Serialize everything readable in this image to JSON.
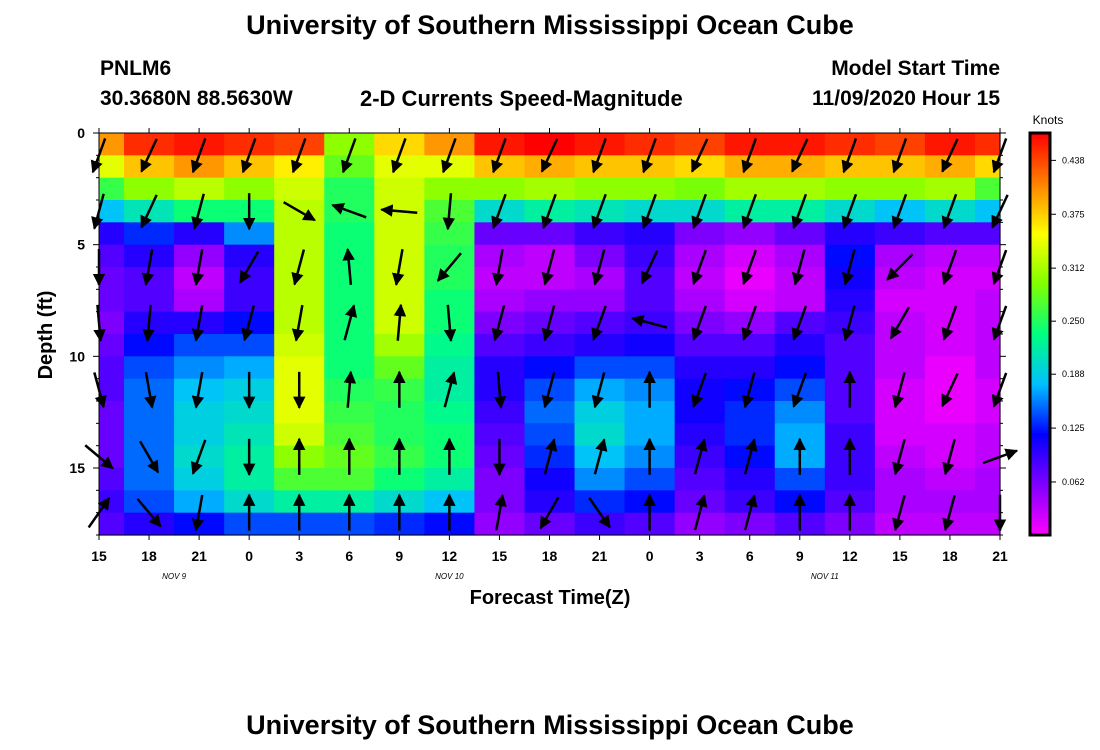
{
  "header": {
    "title": "University of Southern Mississippi Ocean Cube",
    "station": "PNLM6",
    "coords": "30.3680N 88.5630W",
    "subtitle": "2-D Currents Speed-Magnitude",
    "model_label": "Model Start Time",
    "model_time": "11/09/2020 Hour 15"
  },
  "footer": {
    "title": "University of Southern Mississippi Ocean Cube"
  },
  "chart_data": {
    "type": "heatmap",
    "title": "2-D Currents Speed-Magnitude",
    "xlabel": "Forecast Time(Z)",
    "ylabel": "Depth (ft)",
    "x_ticks": [
      "15",
      "18",
      "21",
      "0",
      "3",
      "6",
      "9",
      "12",
      "15",
      "18",
      "21",
      "0",
      "3",
      "6",
      "9",
      "12",
      "15",
      "18",
      "21"
    ],
    "date_labels": [
      "NOV 9",
      "NOV 10",
      "NOV 11"
    ],
    "y_ticks": [
      0,
      5,
      10,
      15
    ],
    "ylim": [
      0,
      18
    ],
    "colorbar": {
      "label": "Knots",
      "ticks": [
        "0.438",
        "0.375",
        "0.312",
        "0.250",
        "0.188",
        "0.125",
        "0.062"
      ],
      "range": [
        0,
        0.47
      ],
      "colors": [
        "#ff00ff",
        "#8000ff",
        "#0000ff",
        "#00c0ff",
        "#00ff80",
        "#80ff00",
        "#ffff00",
        "#ff8000",
        "#ff0000"
      ]
    },
    "columns": 19,
    "depths_ft": [
      0.5,
      1.5,
      2.5,
      3.5,
      4.5,
      5.5,
      6.5,
      7.5,
      8.5,
      9.5,
      10.5,
      11.5,
      12.5,
      13.5,
      14.5,
      15.5,
      16.5,
      17.5
    ],
    "speed_knots": [
      [
        0.4,
        0.45,
        0.46,
        0.45,
        0.44,
        0.3,
        0.37,
        0.4,
        0.46,
        0.47,
        0.46,
        0.45,
        0.44,
        0.46,
        0.46,
        0.45,
        0.44,
        0.46,
        0.45
      ],
      [
        0.34,
        0.38,
        0.4,
        0.38,
        0.36,
        0.28,
        0.34,
        0.34,
        0.38,
        0.39,
        0.38,
        0.38,
        0.37,
        0.39,
        0.39,
        0.38,
        0.38,
        0.39,
        0.37
      ],
      [
        0.26,
        0.3,
        0.32,
        0.3,
        0.33,
        0.25,
        0.33,
        0.3,
        0.3,
        0.31,
        0.3,
        0.3,
        0.29,
        0.31,
        0.31,
        0.3,
        0.3,
        0.31,
        0.27
      ],
      [
        0.18,
        0.21,
        0.24,
        0.24,
        0.32,
        0.25,
        0.33,
        0.27,
        0.2,
        0.22,
        0.21,
        0.2,
        0.2,
        0.22,
        0.22,
        0.2,
        0.18,
        0.2,
        0.18
      ],
      [
        0.1,
        0.13,
        0.1,
        0.16,
        0.32,
        0.24,
        0.33,
        0.26,
        0.07,
        0.07,
        0.09,
        0.1,
        0.06,
        0.05,
        0.07,
        0.1,
        0.09,
        0.08,
        0.08
      ],
      [
        0.08,
        0.1,
        0.05,
        0.1,
        0.32,
        0.24,
        0.33,
        0.25,
        0.04,
        0.03,
        0.06,
        0.09,
        0.04,
        0.02,
        0.04,
        0.12,
        0.04,
        0.03,
        0.03
      ],
      [
        0.07,
        0.08,
        0.03,
        0.09,
        0.32,
        0.24,
        0.33,
        0.25,
        0.03,
        0.03,
        0.04,
        0.08,
        0.03,
        0.01,
        0.03,
        0.11,
        0.03,
        0.02,
        0.02
      ],
      [
        0.07,
        0.08,
        0.04,
        0.09,
        0.32,
        0.24,
        0.33,
        0.24,
        0.04,
        0.05,
        0.05,
        0.08,
        0.04,
        0.02,
        0.03,
        0.1,
        0.02,
        0.02,
        0.03
      ],
      [
        0.06,
        0.1,
        0.1,
        0.12,
        0.32,
        0.24,
        0.33,
        0.24,
        0.06,
        0.07,
        0.08,
        0.09,
        0.06,
        0.05,
        0.08,
        0.09,
        0.03,
        0.02,
        0.03
      ],
      [
        0.07,
        0.12,
        0.14,
        0.14,
        0.33,
        0.24,
        0.31,
        0.23,
        0.08,
        0.09,
        0.1,
        0.11,
        0.08,
        0.08,
        0.1,
        0.08,
        0.03,
        0.02,
        0.03
      ],
      [
        0.08,
        0.14,
        0.16,
        0.17,
        0.34,
        0.24,
        0.28,
        0.22,
        0.1,
        0.12,
        0.14,
        0.14,
        0.1,
        0.1,
        0.12,
        0.08,
        0.03,
        0.01,
        0.03
      ],
      [
        0.08,
        0.15,
        0.18,
        0.19,
        0.34,
        0.25,
        0.26,
        0.22,
        0.1,
        0.14,
        0.17,
        0.16,
        0.11,
        0.12,
        0.14,
        0.08,
        0.02,
        0.01,
        0.02
      ],
      [
        0.07,
        0.15,
        0.19,
        0.2,
        0.34,
        0.26,
        0.25,
        0.23,
        0.09,
        0.15,
        0.19,
        0.17,
        0.11,
        0.13,
        0.16,
        0.08,
        0.02,
        0.01,
        0.02
      ],
      [
        0.07,
        0.15,
        0.19,
        0.21,
        0.33,
        0.27,
        0.25,
        0.24,
        0.08,
        0.14,
        0.2,
        0.17,
        0.1,
        0.13,
        0.17,
        0.09,
        0.02,
        0.02,
        0.03
      ],
      [
        0.07,
        0.15,
        0.2,
        0.22,
        0.3,
        0.28,
        0.26,
        0.24,
        0.07,
        0.13,
        0.18,
        0.16,
        0.09,
        0.12,
        0.17,
        0.09,
        0.03,
        0.02,
        0.03
      ],
      [
        0.08,
        0.15,
        0.19,
        0.22,
        0.27,
        0.27,
        0.24,
        0.22,
        0.06,
        0.11,
        0.16,
        0.14,
        0.08,
        0.1,
        0.14,
        0.09,
        0.04,
        0.03,
        0.04
      ],
      [
        0.09,
        0.14,
        0.17,
        0.2,
        0.22,
        0.22,
        0.2,
        0.18,
        0.06,
        0.1,
        0.13,
        0.12,
        0.07,
        0.09,
        0.12,
        0.08,
        0.04,
        0.04,
        0.04
      ],
      [
        0.08,
        0.1,
        0.12,
        0.14,
        0.14,
        0.14,
        0.13,
        0.12,
        0.05,
        0.07,
        0.09,
        0.08,
        0.05,
        0.06,
        0.08,
        0.06,
        0.03,
        0.03,
        0.03
      ]
    ],
    "vector_note": "current direction arrows",
    "vector_angle_deg": [
      [
        200,
        205,
        200,
        200,
        200,
        200,
        200,
        200,
        200,
        205,
        200,
        200,
        205,
        200,
        205,
        200,
        200,
        205,
        200
      ],
      [
        195,
        205,
        195,
        180,
        120,
        290,
        275,
        185,
        200,
        200,
        200,
        200,
        200,
        200,
        200,
        200,
        200,
        200,
        205
      ],
      [
        180,
        190,
        190,
        210,
        195,
        355,
        190,
        220,
        190,
        195,
        195,
        205,
        200,
        200,
        195,
        195,
        225,
        200,
        200
      ],
      [
        175,
        185,
        190,
        195,
        190,
        15,
        5,
        175,
        195,
        195,
        200,
        285,
        200,
        200,
        200,
        195,
        210,
        200,
        200
      ],
      [
        165,
        170,
        190,
        180,
        180,
        5,
        0,
        15,
        175,
        195,
        195,
        0,
        200,
        195,
        200,
        0,
        195,
        205,
        200
      ],
      [
        130,
        150,
        200,
        180,
        0,
        0,
        0,
        0,
        180,
        15,
        15,
        0,
        15,
        15,
        0,
        0,
        195,
        195,
        70
      ],
      [
        35,
        140,
        190,
        0,
        0,
        0,
        0,
        0,
        10,
        210,
        145,
        0,
        15,
        15,
        0,
        0,
        195,
        195,
        180
      ]
    ]
  }
}
